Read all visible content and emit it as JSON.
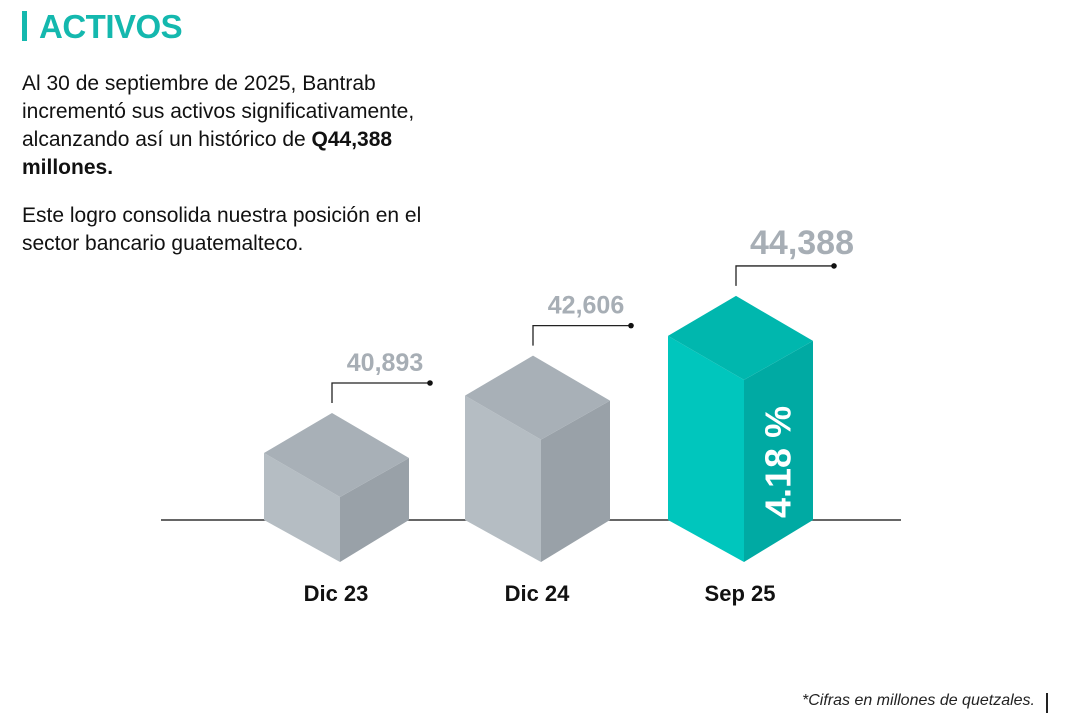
{
  "header": {
    "title": "ACTIVOS"
  },
  "text": {
    "p1_before": "Al 30 de septiembre de 2025, Bantrab incrementó sus activos significativamente, alcanzando así un histórico de ",
    "p1_bold": "Q44,388 millones.",
    "p2": "Este logro consolida nuestra posición en el sector bancario guatemalteco."
  },
  "footnote": "*Cifras en millones de quetzales.",
  "colors": {
    "accent": "#14b8ae",
    "gray_front": "#b5bdc3",
    "gray_side": "#99a1a8",
    "gray_top": "#a8b0b7",
    "teal_front": "#00c6bd",
    "teal_side": "#00aaa3",
    "teal_top": "#00b7ae",
    "value_label": "#a7aeb5"
  },
  "chart_data": {
    "type": "bar",
    "style": "3d-isometric",
    "categories": [
      "Dic 23",
      "Dic 24",
      "Sep 25"
    ],
    "values": [
      40893,
      42606,
      44388
    ],
    "value_labels": [
      "40,893",
      "42,606",
      "44,388"
    ],
    "highlight_index": 2,
    "annotation": "4.18 %",
    "title": "",
    "xlabel": "",
    "ylabel": "",
    "grid": false
  }
}
